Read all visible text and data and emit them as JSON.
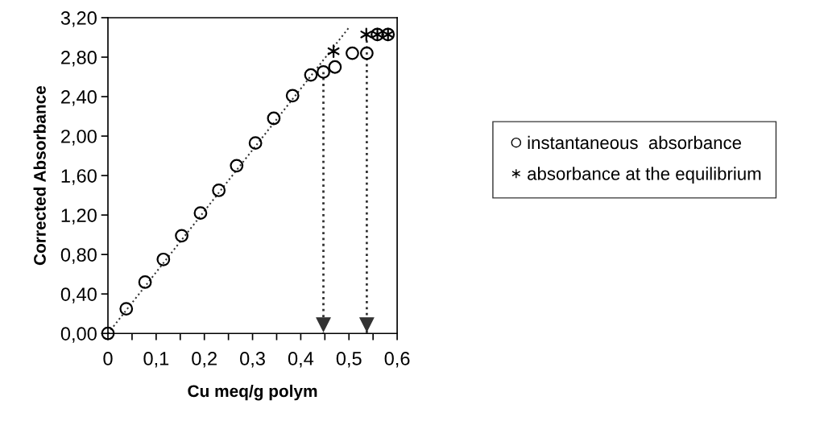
{
  "chart_data": {
    "type": "scatter",
    "xlabel": "Cu meq/g polym",
    "ylabel": "Corrected Absorbance",
    "series": [
      {
        "name": "instantaneous  absorbance",
        "type": "scatter",
        "marker": "circle",
        "color": "#000000",
        "x": [
          0,
          0.038,
          0.077,
          0.115,
          0.153,
          0.192,
          0.23,
          0.267,
          0.306,
          0.344,
          0.383,
          0.421,
          0.447,
          0.471,
          0.507,
          0.537,
          0.559,
          0.581
        ],
        "values": [
          0,
          0.25,
          0.52,
          0.75,
          0.99,
          1.22,
          1.45,
          1.7,
          1.93,
          2.18,
          2.41,
          2.62,
          2.65,
          2.7,
          2.84,
          2.84,
          3.03,
          3.03
        ]
      },
      {
        "name": "absorbance at the equilibrium",
        "type": "scatter",
        "marker": "cross",
        "color": "#000000",
        "x": [
          0.468,
          0.536,
          0.559,
          0.581
        ],
        "values": [
          2.86,
          3.03,
          3.03,
          3.03
        ]
      },
      {
        "type": "line",
        "line_style": "dotted",
        "color": "#333333",
        "x": [
          0,
          0.5
        ],
        "values": [
          0,
          3.1
        ]
      }
    ],
    "ref_lines": [
      {
        "axis": "x",
        "value": 0.447,
        "line_style": "dotted",
        "color": "#333333"
      },
      {
        "axis": "x",
        "value": 0.537,
        "line_style": "dotted",
        "color": "#333333"
      }
    ],
    "xlim": [
      0,
      0.6
    ],
    "ylim": [
      0,
      3.2
    ],
    "xticks": [
      0,
      {
        "value": 0.05,
        "label": null
      },
      {
        "value": 0.1,
        "label": "0,1"
      },
      {
        "value": 0.15,
        "label": null
      },
      {
        "value": 0.2,
        "label": "0,2"
      },
      {
        "value": 0.25,
        "label": null
      },
      {
        "value": 0.3,
        "label": "0,3"
      },
      {
        "value": 0.35,
        "label": null
      },
      {
        "value": 0.4,
        "label": "0,4"
      },
      {
        "value": 0.45,
        "label": null
      },
      {
        "value": 0.5,
        "label": "0,5"
      },
      {
        "value": 0.55,
        "label": null
      },
      {
        "value": 0.6,
        "label": "0,6"
      }
    ],
    "yticks": [
      {
        "value": 0,
        "label": "0,00"
      },
      {
        "value": 0.4,
        "label": "0,40"
      },
      {
        "value": 0.8,
        "label": "0,80"
      },
      {
        "value": 1.2,
        "label": "1,20"
      },
      {
        "value": 1.6,
        "label": "1,60"
      },
      {
        "value": 2.0,
        "label": "2,00"
      },
      {
        "value": 2.4,
        "label": "2,40"
      },
      {
        "value": 2.8,
        "label": "2,80"
      },
      {
        "value": 3.2,
        "label": "3,20"
      }
    ],
    "grid": false,
    "legend": "right"
  }
}
